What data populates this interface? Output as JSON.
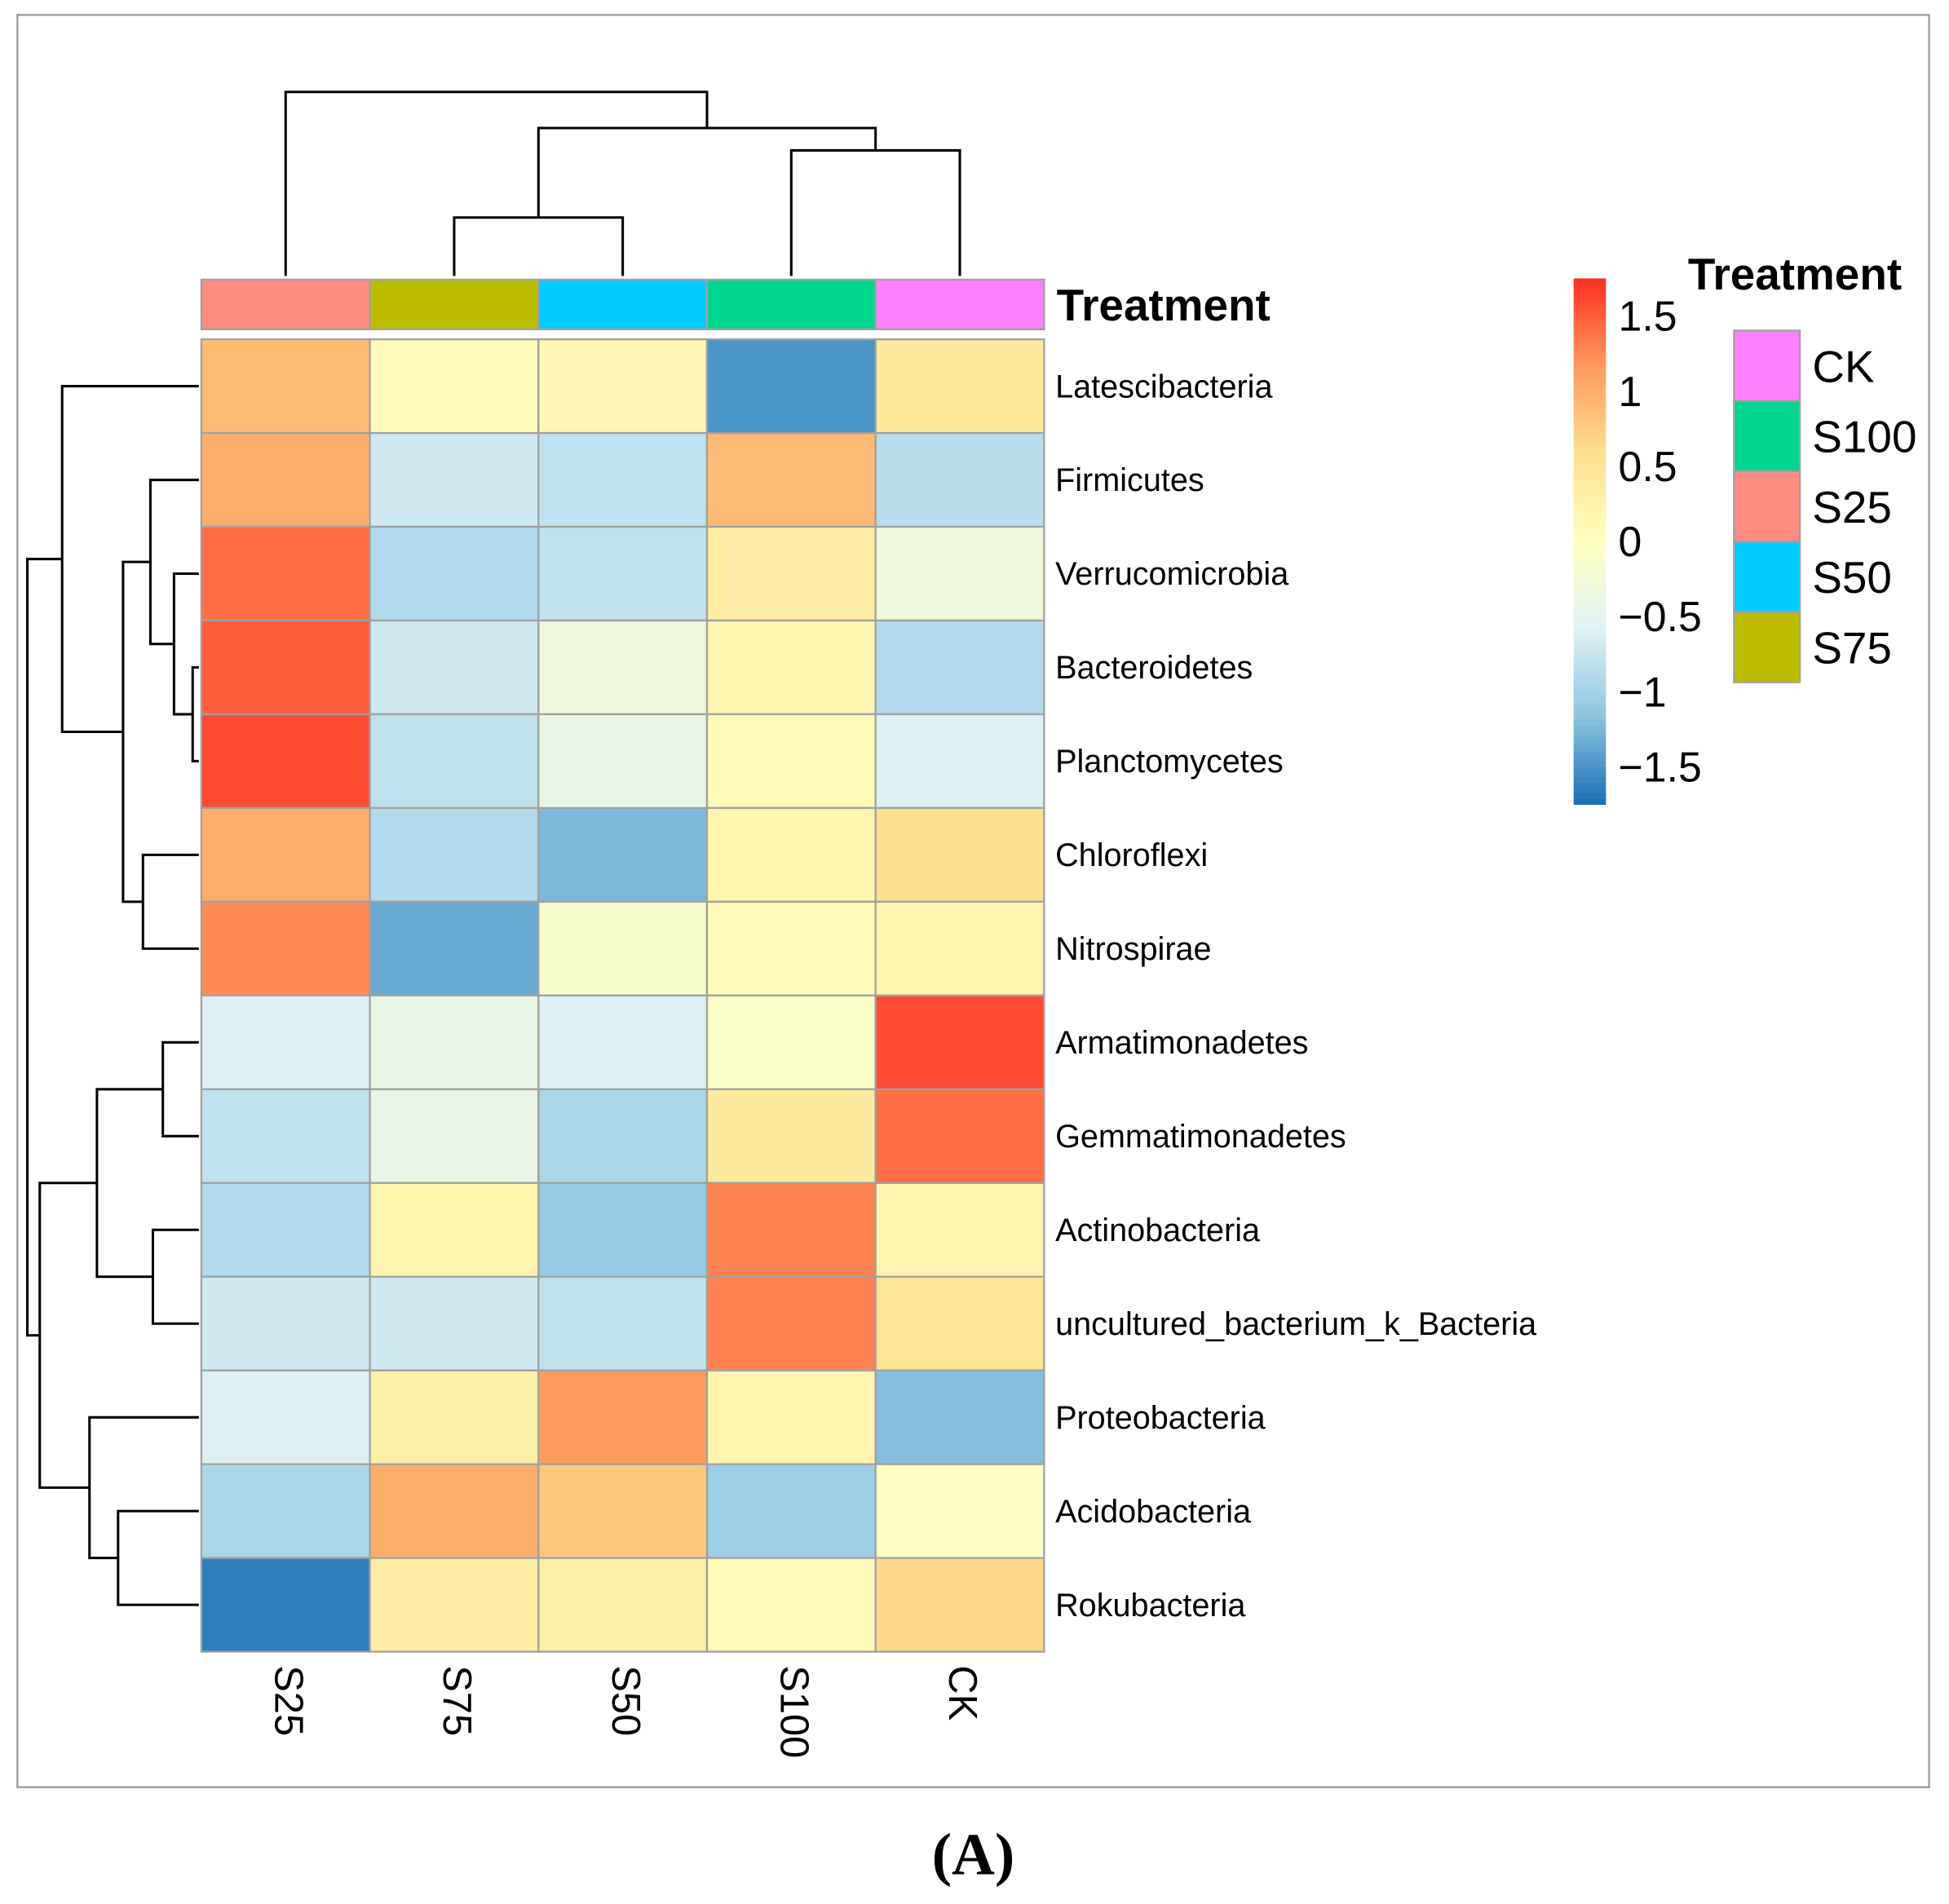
{
  "chart_data": {
    "type": "heatmap",
    "title": "",
    "caption": "(A)",
    "columns": [
      "S25",
      "S75",
      "S50",
      "S100",
      "CK"
    ],
    "column_treatment": [
      "S25",
      "S75",
      "S50",
      "S100",
      "CK"
    ],
    "annotation_title": "Treatment",
    "rows": [
      "Latescibacteria",
      "Firmicutes",
      "Verrucomicrobia",
      "Bacteroidetes",
      "Planctomycetes",
      "Chloroflexi",
      "Nitrospirae",
      "Armatimonadetes",
      "Gemmatimonadetes",
      "Actinobacteria",
      "uncultured_bacterium_k_Bacteria",
      "Proteobacteria",
      "Acidobacteria",
      "Rokubacteria"
    ],
    "values": [
      [
        0.9,
        0.05,
        0.15,
        -1.5,
        0.4
      ],
      [
        1.0,
        -0.7,
        -0.8,
        0.9,
        -0.85
      ],
      [
        1.4,
        -0.9,
        -0.8,
        0.35,
        -0.3
      ],
      [
        1.5,
        -0.7,
        -0.3,
        0.2,
        -0.9
      ],
      [
        1.6,
        -0.8,
        -0.4,
        0.1,
        -0.6
      ],
      [
        1.0,
        -0.9,
        -1.25,
        0.2,
        0.6
      ],
      [
        1.25,
        -1.35,
        -0.15,
        0.1,
        0.2
      ],
      [
        -0.6,
        -0.4,
        -0.6,
        -0.1,
        1.6
      ],
      [
        -0.8,
        -0.4,
        -0.95,
        0.4,
        1.4
      ],
      [
        -0.9,
        0.2,
        -1.1,
        1.3,
        0.2
      ],
      [
        -0.7,
        -0.7,
        -0.8,
        1.3,
        0.5
      ],
      [
        -0.6,
        0.3,
        1.15,
        0.2,
        -1.2
      ],
      [
        -0.95,
        1.0,
        0.8,
        -1.05,
        -0.05
      ],
      [
        -1.65,
        0.35,
        0.3,
        0.1,
        0.65
      ]
    ],
    "color_scale": {
      "range": [
        -1.75,
        1.75
      ],
      "stops": [
        "#1a6fb5",
        "#8cc5e0",
        "#dff2f6",
        "#ffffbf",
        "#fee090",
        "#fe9a5e",
        "#fe2f22"
      ],
      "ticks": [
        1.5,
        1,
        0.5,
        0,
        -0.5,
        -1,
        -1.5
      ],
      "tick_labels": [
        "1.5",
        "1",
        "0.5",
        "0",
        "−0.5",
        "−1",
        "−1.5"
      ]
    },
    "legend": {
      "title": "Treatment",
      "entries": [
        {
          "label": "CK",
          "color": "#ff80ff"
        },
        {
          "label": "S100",
          "color": "#00d68f"
        },
        {
          "label": "S25",
          "color": "#ff8c80"
        },
        {
          "label": "S50",
          "color": "#00ccff"
        },
        {
          "label": "S75",
          "color": "#bdbd00"
        }
      ]
    }
  }
}
